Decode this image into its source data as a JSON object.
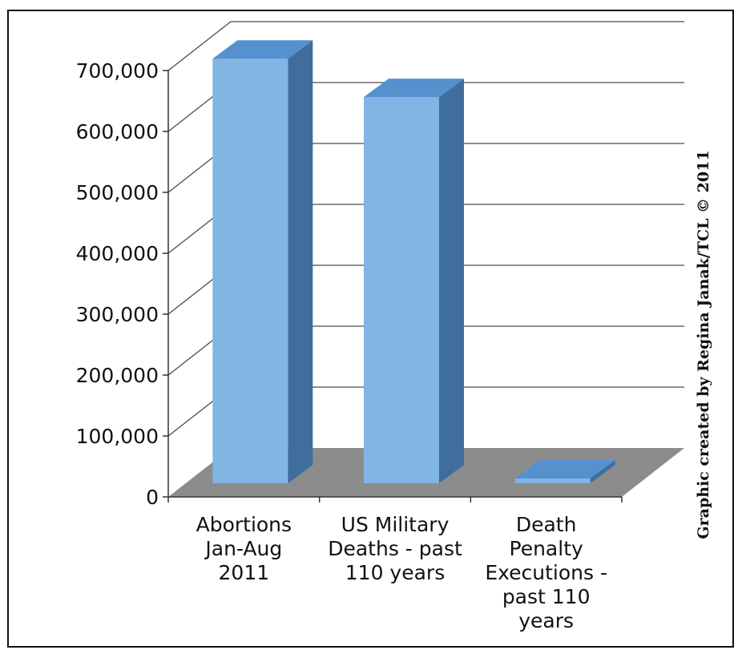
{
  "chart_data": {
    "type": "bar",
    "style": "3d-column",
    "title": "",
    "xlabel": "",
    "ylabel": "",
    "ylim": [
      0,
      700000
    ],
    "grid": true,
    "legend": "none",
    "y_ticks": [
      {
        "value": 0,
        "label": "0"
      },
      {
        "value": 100000,
        "label": "100,000"
      },
      {
        "value": 200000,
        "label": "200,000"
      },
      {
        "value": 300000,
        "label": "300,000"
      },
      {
        "value": 400000,
        "label": "400,000"
      },
      {
        "value": 500000,
        "label": "500,000"
      },
      {
        "value": 600000,
        "label": "600,000"
      },
      {
        "value": 700000,
        "label": "700,000"
      }
    ],
    "categories": [
      {
        "label_lines": [
          "Abortions",
          "Jan-Aug",
          "2011"
        ]
      },
      {
        "label_lines": [
          "US Military",
          "Deaths - past",
          "110 years"
        ]
      },
      {
        "label_lines": [
          "Death",
          "Penalty",
          "Executions -",
          "past 110",
          "years"
        ]
      }
    ],
    "values": [
      705000,
      642000,
      2000
    ],
    "colors": {
      "bar_front": "#82b4e4",
      "bar_top": "#5591cf",
      "bar_side": "#3f6e9e",
      "floor": "#8c8c8c",
      "gridline": "#4a4a4a"
    }
  },
  "credit": "Graphic created by Regina Janak/TCL © 2011"
}
